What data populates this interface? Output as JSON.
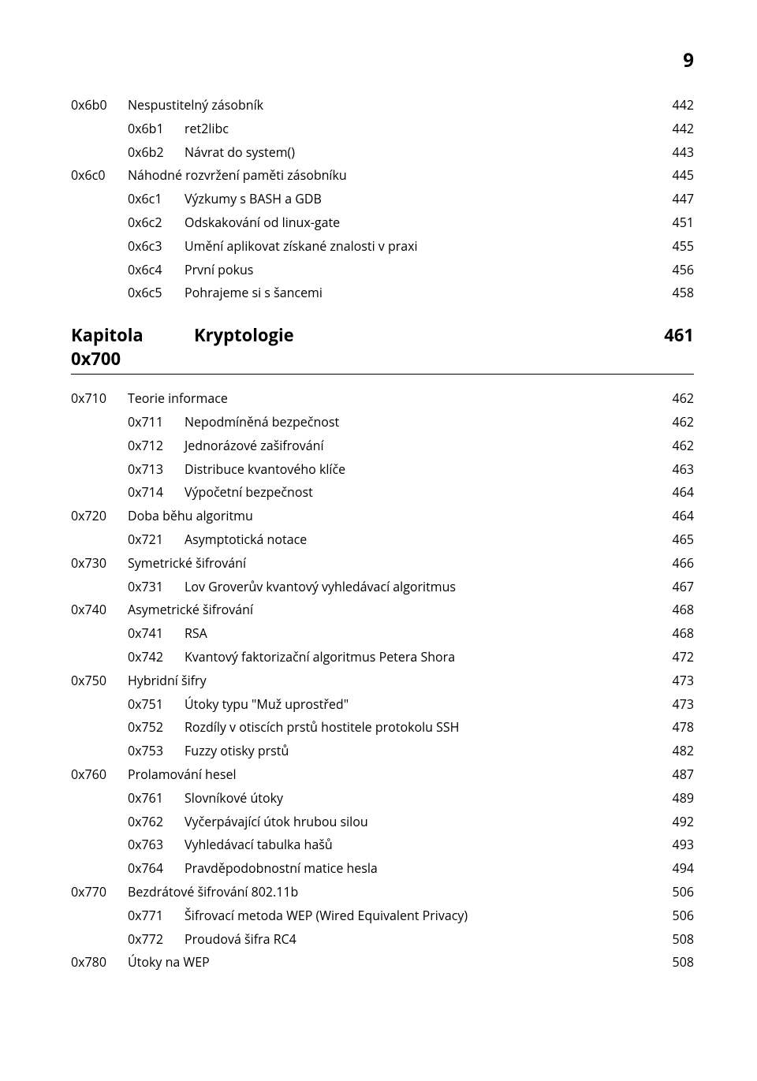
{
  "page_number": "9",
  "text_color": "#000000",
  "background_color": "#ffffff",
  "body_fontsize": 16,
  "chapter_fontsize": 22,
  "pagenum_fontsize": 24,
  "pre_rows": [
    {
      "code": "0x6b0",
      "label": "Nespustitelný zásobník",
      "page": "442",
      "indent": 0
    },
    {
      "code": "0x6b1",
      "label": "ret2libc",
      "page": "442",
      "indent": 1
    },
    {
      "code": "0x6b2",
      "label": "Návrat do system()",
      "page": "443",
      "indent": 1
    },
    {
      "code": "0x6c0",
      "label": "Náhodné rozvržení paměti zásobníku",
      "page": "445",
      "indent": 0
    },
    {
      "code": "0x6c1",
      "label": "Výzkumy s BASH a GDB",
      "page": "447",
      "indent": 1
    },
    {
      "code": "0x6c2",
      "label": "Odskakování od linux-gate",
      "page": "451",
      "indent": 1
    },
    {
      "code": "0x6c3",
      "label": "Umění aplikovat získané znalosti v praxi",
      "page": "455",
      "indent": 1
    },
    {
      "code": "0x6c4",
      "label": "První pokus",
      "page": "456",
      "indent": 1
    },
    {
      "code": "0x6c5",
      "label": "Pohrajeme si s šancemi",
      "page": "458",
      "indent": 1
    }
  ],
  "chapter": {
    "left": "Kapitola 0x700",
    "right": "Kryptologie",
    "page": "461"
  },
  "post_rows": [
    {
      "code": "0x710",
      "label": "Teorie informace",
      "page": "462",
      "indent": 0
    },
    {
      "code": "0x711",
      "label": "Nepodmíněná bezpečnost",
      "page": "462",
      "indent": 1
    },
    {
      "code": "0x712",
      "label": "Jednorázové zašifrování",
      "page": "462",
      "indent": 1
    },
    {
      "code": "0x713",
      "label": "Distribuce kvantového klíče",
      "page": "463",
      "indent": 1
    },
    {
      "code": "0x714",
      "label": "Výpočetní bezpečnost",
      "page": "464",
      "indent": 1
    },
    {
      "code": "0x720",
      "label": "Doba běhu algoritmu",
      "page": "464",
      "indent": 0
    },
    {
      "code": "0x721",
      "label": "Asymptotická notace",
      "page": "465",
      "indent": 1
    },
    {
      "code": "0x730",
      "label": "Symetrické šifrování",
      "page": "466",
      "indent": 0
    },
    {
      "code": "0x731",
      "label": "Lov Groverův kvantový vyhledávací algoritmus",
      "page": "467",
      "indent": 1
    },
    {
      "code": "0x740",
      "label": "Asymetrické šifrování",
      "page": "468",
      "indent": 0
    },
    {
      "code": "0x741",
      "label": "RSA",
      "page": "468",
      "indent": 1
    },
    {
      "code": "0x742",
      "label": "Kvantový faktorizační algoritmus Petera Shora",
      "page": "472",
      "indent": 1
    },
    {
      "code": "0x750",
      "label": "Hybridní šifry",
      "page": "473",
      "indent": 0
    },
    {
      "code": "0x751",
      "label": "Útoky typu \"Muž uprostřed\"",
      "page": "473",
      "indent": 1
    },
    {
      "code": "0x752",
      "label": "Rozdíly v otiscích prstů hostitele protokolu SSH",
      "page": "478",
      "indent": 1
    },
    {
      "code": "0x753",
      "label": "Fuzzy otisky prstů",
      "page": "482",
      "indent": 1
    },
    {
      "code": "0x760",
      "label": "Prolamování hesel",
      "page": "487",
      "indent": 0
    },
    {
      "code": "0x761",
      "label": "Slovníkové útoky",
      "page": "489",
      "indent": 1
    },
    {
      "code": "0x762",
      "label": "Vyčerpávající útok hrubou silou",
      "page": "492",
      "indent": 1
    },
    {
      "code": "0x763",
      "label": "Vyhledávací tabulka hašů",
      "page": "493",
      "indent": 1
    },
    {
      "code": "0x764",
      "label": "Pravděpodobnostní matice hesla",
      "page": "494",
      "indent": 1
    },
    {
      "code": "0x770",
      "label": "Bezdrátové šifrování 802.11b",
      "page": "506",
      "indent": 0
    },
    {
      "code": "0x771",
      "label": "Šifrovací metoda WEP (Wired Equivalent Privacy)",
      "page": "506",
      "indent": 1
    },
    {
      "code": "0x772",
      "label": "Proudová šifra RC4",
      "page": "508",
      "indent": 1
    },
    {
      "code": "0x780",
      "label": "Útoky na WEP",
      "page": "508",
      "indent": 0
    }
  ]
}
